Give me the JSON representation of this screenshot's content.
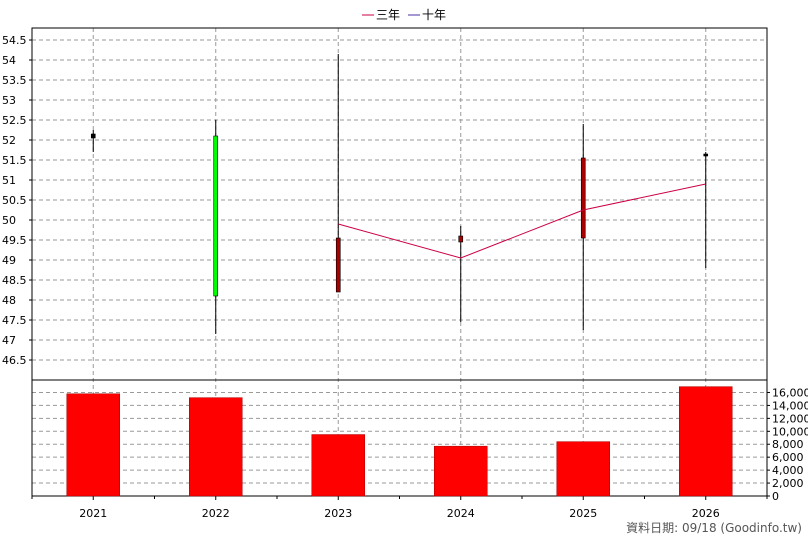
{
  "chart_data": {
    "type": "candlestick+bar",
    "categories": [
      "2021",
      "2022",
      "2023",
      "2024",
      "2025",
      "2026"
    ],
    "legend": [
      {
        "name": "三年",
        "color": "#cc0044"
      },
      {
        "name": "十年",
        "color": "#4b2ca8"
      }
    ],
    "price_axis": {
      "ylim": [
        46,
        54.8
      ],
      "ticks": [
        "46.5",
        "47",
        "47.5",
        "48",
        "48.5",
        "49",
        "49.5",
        "50",
        "50.5",
        "51",
        "51.5",
        "52",
        "52.5",
        "53",
        "53.5",
        "54",
        "54.5"
      ]
    },
    "volume_axis": {
      "ylim": [
        0,
        17000
      ],
      "ticks": [
        "0",
        "2,000",
        "4,000",
        "6,000",
        "8,000",
        "10,000",
        "12,000",
        "14,000",
        "16,000"
      ]
    },
    "candles": [
      {
        "year": "2021",
        "open": 52.05,
        "close": 52.15,
        "high": 52.25,
        "low": 51.7,
        "color": "#000000"
      },
      {
        "year": "2022",
        "open": 48.1,
        "close": 52.1,
        "high": 52.5,
        "low": 47.15,
        "color": "#00ff00"
      },
      {
        "year": "2023",
        "open": 49.55,
        "close": 48.2,
        "high": 54.15,
        "low": 48.2,
        "color": "#aa0000"
      },
      {
        "year": "2024",
        "open": 49.6,
        "close": 49.45,
        "high": 49.85,
        "low": 47.45,
        "color": "#aa0000"
      },
      {
        "year": "2025",
        "open": 51.55,
        "close": 49.55,
        "high": 52.4,
        "low": 47.25,
        "color": "#aa0000"
      },
      {
        "year": "2026",
        "open": 51.6,
        "close": 51.65,
        "high": 51.7,
        "low": 48.8,
        "color": "#000000"
      }
    ],
    "three_year_line": [
      {
        "year": "2023",
        "value": 49.9
      },
      {
        "year": "2024",
        "value": 49.05
      },
      {
        "year": "2025",
        "value": 50.25
      },
      {
        "year": "2026",
        "value": 50.9
      }
    ],
    "volume": [
      15800,
      15200,
      9500,
      7700,
      8400,
      16900
    ],
    "volume_color": "#ff0000",
    "grid": true
  },
  "source_label": "資料日期: 09/18  (Goodinfo.tw)"
}
